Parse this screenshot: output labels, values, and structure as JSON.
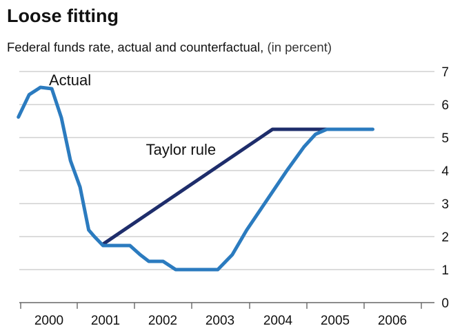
{
  "header": {
    "title": "Loose fitting",
    "subtitle": "Federal funds rate, actual and counterfactual,",
    "unit": "(in percent)"
  },
  "chart_data": {
    "type": "line",
    "title": "Loose fitting",
    "subtitle": "Federal funds rate, actual and counterfactual, (in percent)",
    "xlabel": "",
    "ylabel": "",
    "xlim": [
      2000.0,
      2007.0
    ],
    "ylim": [
      0,
      7
    ],
    "y_ticks": [
      0,
      1,
      2,
      3,
      4,
      5,
      6,
      7
    ],
    "x_ticks": [
      2000,
      2001,
      2002,
      2003,
      2004,
      2005,
      2006
    ],
    "x_tick_labels": [
      "2000",
      "2001",
      "2002",
      "2003",
      "2004",
      "2005",
      "2006"
    ],
    "y_axis_side": "right",
    "grid": "horizontal",
    "series": [
      {
        "name": "Actual",
        "color": "#2b7bbf",
        "points": [
          [
            1999.96,
            5.62
          ],
          [
            2000.15,
            6.3
          ],
          [
            2000.35,
            6.52
          ],
          [
            2000.55,
            6.48
          ],
          [
            2000.72,
            5.6
          ],
          [
            2000.88,
            4.3
          ],
          [
            2001.05,
            3.5
          ],
          [
            2001.2,
            2.2
          ],
          [
            2001.3,
            2.0
          ],
          [
            2001.45,
            1.73
          ],
          [
            2001.65,
            1.73
          ],
          [
            2001.92,
            1.73
          ],
          [
            2002.1,
            1.45
          ],
          [
            2002.25,
            1.25
          ],
          [
            2002.5,
            1.25
          ],
          [
            2002.72,
            1.0
          ],
          [
            2002.95,
            1.0
          ],
          [
            2003.25,
            1.0
          ],
          [
            2003.45,
            1.0
          ],
          [
            2003.7,
            1.45
          ],
          [
            2003.95,
            2.2
          ],
          [
            2004.3,
            3.1
          ],
          [
            2004.65,
            4.0
          ],
          [
            2004.95,
            4.72
          ],
          [
            2005.15,
            5.1
          ],
          [
            2005.35,
            5.25
          ],
          [
            2005.7,
            5.25
          ],
          [
            2006.15,
            5.25
          ]
        ]
      },
      {
        "name": "Taylor rule",
        "color": "#1e2d6b",
        "points": [
          [
            2001.45,
            1.77
          ],
          [
            2004.4,
            5.25
          ],
          [
            2005.35,
            5.25
          ]
        ]
      }
    ],
    "annotations": [
      {
        "text": "Actual",
        "x": 2000.5,
        "y": 6.58
      },
      {
        "text": "Taylor rule",
        "x": 2002.2,
        "y": 4.48
      }
    ]
  }
}
